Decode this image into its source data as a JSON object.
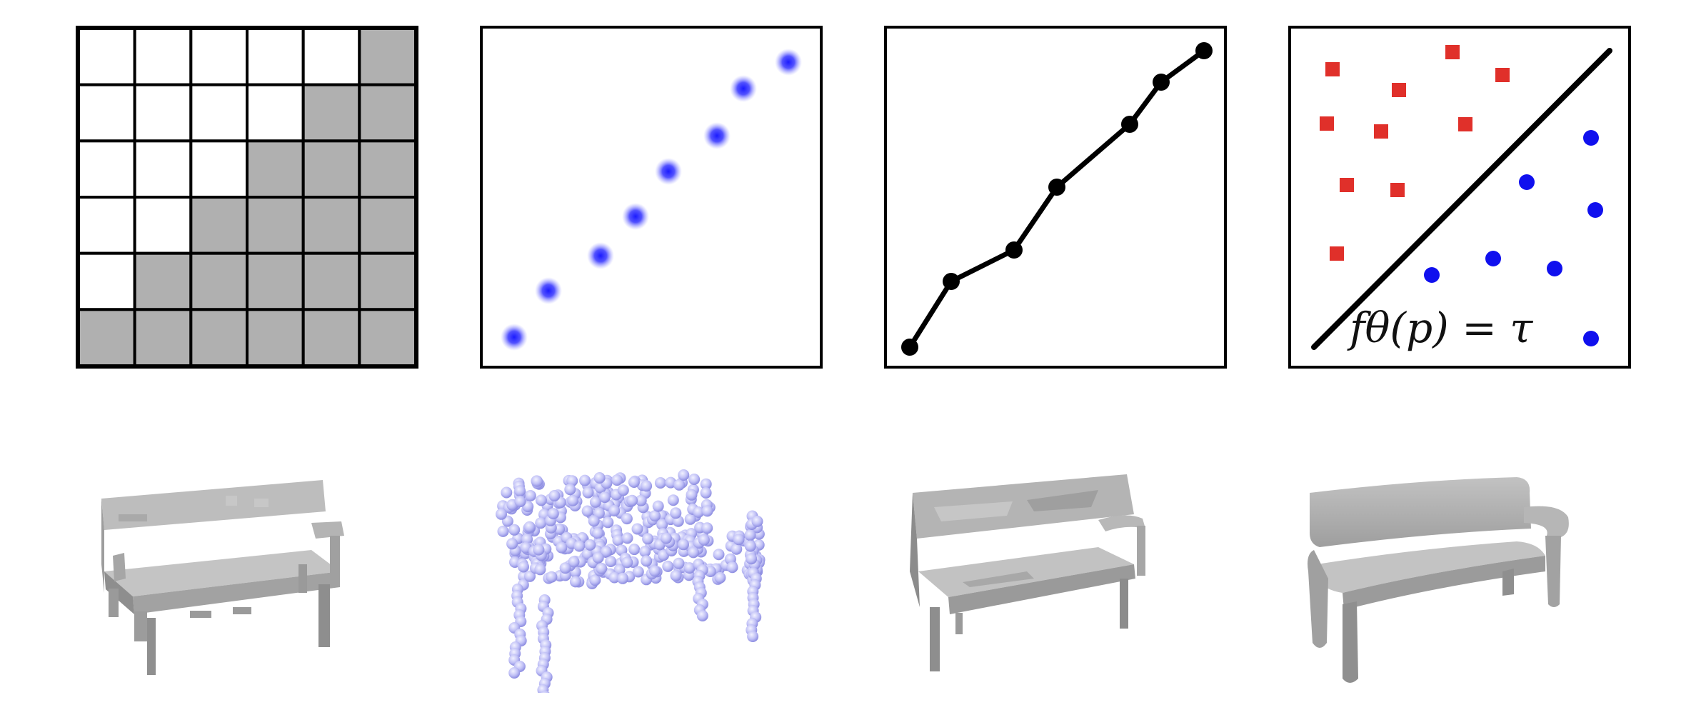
{
  "figure": {
    "panels": [
      {
        "name": "voxel-grid-panel",
        "grid": {
          "rows": 6,
          "cols": 6,
          "fill_color": "#b0b0b0",
          "line_color": "#000000"
        }
      },
      {
        "name": "point-cloud-panel",
        "point_color": "#1a1aff"
      },
      {
        "name": "mesh-panel",
        "line_color": "#000000"
      },
      {
        "name": "implicit-panel",
        "equation": "fθ(p) = τ",
        "inside_color": "#e0302a",
        "outside_color": "#1010ee"
      }
    ],
    "shapes": [
      {
        "name": "voxel-bench",
        "color": "#a8a8a8"
      },
      {
        "name": "point-bench",
        "color": "#b9b9f5"
      },
      {
        "name": "mesh-bench",
        "color": "#a4a4a4"
      },
      {
        "name": "implicit-bench",
        "color": "#a6a6a6"
      }
    ]
  }
}
